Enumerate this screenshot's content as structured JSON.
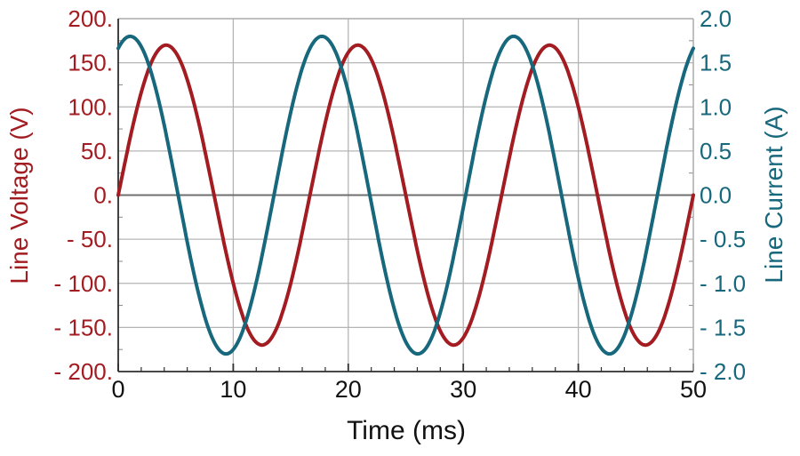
{
  "figure": {
    "background": "#ffffff"
  },
  "chart_data": {
    "type": "line",
    "title": "",
    "grid": {
      "show": true,
      "color": "#b5b5b5",
      "zero_line_color": "#6f6f6f"
    },
    "axis_colors": {
      "dark": "#2e2e2e",
      "light": "#ababab",
      "minor_y_tick": "#8a8a8a"
    },
    "legend": {
      "show": false
    },
    "x_axis": {
      "label": "Time (ms)",
      "min": 0,
      "max": 50,
      "major_ticks": [
        0,
        10,
        20,
        30,
        40,
        50
      ],
      "tick_labels": [
        "0",
        "10",
        "20",
        "30",
        "40",
        "50"
      ],
      "minor_tick_step": 2,
      "color": "#111111"
    },
    "y_left_axis": {
      "label": "Line Voltage (V)",
      "min": -200,
      "max": 200,
      "tick_values": [
        200,
        150,
        100,
        50,
        0,
        -50,
        -100,
        -150,
        -200
      ],
      "tick_labels": [
        "200.",
        "150.",
        "100.",
        "50.",
        "0.",
        "- 50.",
        "- 100.",
        "- 150.",
        "- 200."
      ],
      "minor_tick_step": 25,
      "color": "#A21C21"
    },
    "y_right_axis": {
      "label": "Line Current (A)",
      "min": -2,
      "max": 2,
      "tick_values": [
        2,
        1.5,
        1,
        0.5,
        0,
        -0.5,
        -1,
        -1.5,
        -2
      ],
      "tick_labels": [
        "2.0",
        "1.5",
        "1.0",
        "0.5",
        "0.0",
        "- 0.5",
        "- 1.0",
        "- 1.5",
        "- 2.0"
      ],
      "minor_tick_step": 0.25,
      "color": "#17687C"
    },
    "series": [
      {
        "name": "Line Voltage",
        "axis": "left",
        "type": "sine",
        "amplitude": 170,
        "frequency_hz": 60,
        "phase_deg": 0,
        "offset": 0,
        "units": "V",
        "peak_value": 170,
        "color": "#A21C21"
      },
      {
        "name": "Line Current",
        "axis": "right",
        "type": "sine",
        "amplitude": 1.8,
        "frequency_hz": 60,
        "phase_deg": 67.5,
        "offset": 0,
        "units": "A",
        "peak_value": 1.8,
        "color": "#17687C"
      }
    ]
  }
}
